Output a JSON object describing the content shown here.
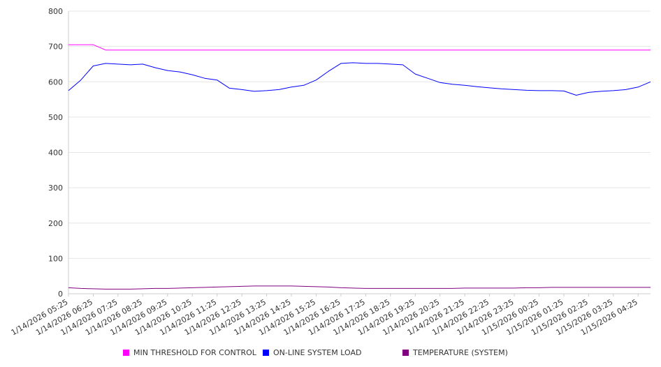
{
  "chart_data": {
    "type": "line",
    "title": "",
    "xlabel": "",
    "ylabel": "",
    "ylim": [
      0,
      800
    ],
    "yticks": [
      0,
      100,
      200,
      300,
      400,
      500,
      600,
      700,
      800
    ],
    "grid": true,
    "legend_position": "bottom",
    "x_tick_labels": [
      "1/14/2026 05:25",
      "1/14/2026 06:25",
      "1/14/2026 07:25",
      "1/14/2026 08:25",
      "1/14/2026 09:25",
      "1/14/2026 10:25",
      "1/14/2026 11:25",
      "1/14/2026 12:25",
      "1/14/2026 13:25",
      "1/14/2026 14:25",
      "1/14/2026 15:25",
      "1/14/2026 16:25",
      "1/14/2026 17:25",
      "1/14/2026 18:25",
      "1/14/2026 19:25",
      "1/14/2026 20:25",
      "1/14/2026 21:25",
      "1/14/2026 22:25",
      "1/14/2026 23:25",
      "1/15/2026 00:25",
      "1/15/2026 01:25",
      "1/15/2026 02:25",
      "1/15/2026 03:25",
      "1/15/2026 04:25"
    ],
    "x_hours": [
      0,
      0.5,
      1,
      1.5,
      2,
      2.5,
      3,
      3.5,
      4,
      4.5,
      5,
      5.5,
      6,
      6.5,
      7,
      7.5,
      8,
      8.5,
      9,
      9.5,
      10,
      10.5,
      11,
      11.5,
      12,
      12.5,
      13,
      13.5,
      14,
      14.5,
      15,
      15.5,
      16,
      16.5,
      17,
      17.5,
      18,
      18.5,
      19,
      19.5,
      20,
      20.5,
      21,
      21.5,
      22,
      22.5,
      23,
      23.5
    ],
    "series": [
      {
        "name": "MIN THRESHOLD FOR CONTROL",
        "color": "#ff00ff",
        "values": [
          705,
          705,
          705,
          690,
          690,
          690,
          690,
          690,
          690,
          690,
          690,
          690,
          690,
          690,
          690,
          690,
          690,
          690,
          690,
          690,
          690,
          690,
          690,
          690,
          690,
          690,
          690,
          690,
          690,
          690,
          690,
          690,
          690,
          690,
          690,
          690,
          690,
          690,
          690,
          690,
          690,
          690,
          690,
          690,
          690,
          690,
          690,
          690
        ]
      },
      {
        "name": "ON-LINE SYSTEM LOAD",
        "color": "#0000ff",
        "values": [
          575,
          605,
          645,
          652,
          650,
          648,
          650,
          640,
          632,
          628,
          620,
          610,
          605,
          582,
          578,
          573,
          575,
          578,
          585,
          590,
          605,
          630,
          652,
          654,
          652,
          652,
          650,
          648,
          622,
          610,
          598,
          593,
          590,
          586,
          583,
          580,
          578,
          576,
          575,
          575,
          574,
          562,
          570,
          573,
          575,
          578,
          585,
          600
        ]
      },
      {
        "name": "TEMPERATURE (SYSTEM)",
        "color": "#800080",
        "values": [
          17,
          15,
          14,
          13,
          13,
          13,
          14,
          15,
          15,
          16,
          17,
          18,
          19,
          20,
          21,
          22,
          22,
          22,
          22,
          21,
          20,
          19,
          17,
          16,
          15,
          15,
          15,
          15,
          15,
          15,
          15,
          15,
          16,
          16,
          16,
          16,
          16,
          17,
          17,
          18,
          18,
          18,
          18,
          18,
          18,
          18,
          18,
          18
        ]
      }
    ]
  }
}
